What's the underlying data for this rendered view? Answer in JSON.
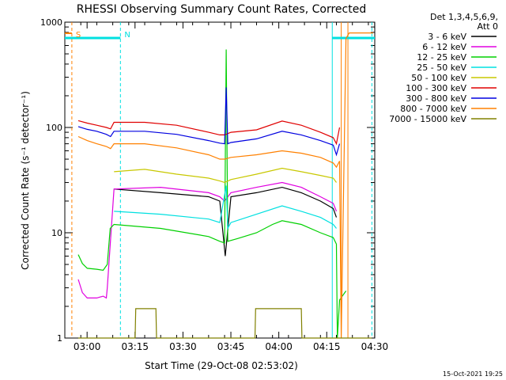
{
  "chart_data": {
    "type": "line",
    "title": "RHESSI Observing Summary Count Rates, Corrected",
    "xlabel": "Start Time (29-Oct-08 02:53:02)",
    "ylabel": "Corrected Count Rate (s⁻¹ detector⁻¹)",
    "y_scale": "log",
    "ylim": [
      1,
      1000
    ],
    "xlim_minutes": [
      0,
      97
    ],
    "y_tick_labels": [
      "1",
      "10",
      "100",
      "1000"
    ],
    "x_tick_labels": [
      "03:00",
      "03:15",
      "03:30",
      "03:45",
      "04:00",
      "04:15",
      "04:30"
    ],
    "x_tick_minutes": [
      6.97,
      21.97,
      36.97,
      51.97,
      66.97,
      81.97,
      96.97
    ],
    "legend_header": [
      "Det 1,3,4,5,6,9,",
      "Att 0"
    ],
    "series": [
      {
        "name": "3 - 6 keV",
        "color": "#000000",
        "points": [
          [
            15.4,
            26
          ],
          [
            30,
            24
          ],
          [
            45,
            22
          ],
          [
            48.5,
            20
          ],
          [
            50.2,
            6
          ],
          [
            52,
            22
          ],
          [
            60,
            24
          ],
          [
            68,
            27
          ],
          [
            74,
            24
          ],
          [
            80,
            20
          ],
          [
            84,
            17
          ],
          [
            85,
            14
          ]
        ]
      },
      {
        "name": "6 - 12 keV",
        "color": "#e000e0",
        "points": [
          [
            4.2,
            3.6
          ],
          [
            5.5,
            2.7
          ],
          [
            7,
            2.4
          ],
          [
            10,
            2.4
          ],
          [
            12,
            2.5
          ],
          [
            13,
            2.4
          ],
          [
            13.3,
            3
          ],
          [
            15.4,
            26
          ],
          [
            30,
            27
          ],
          [
            45,
            24
          ],
          [
            48.5,
            22
          ],
          [
            50,
            20
          ],
          [
            52,
            24
          ],
          [
            60,
            27
          ],
          [
            68,
            30
          ],
          [
            74,
            27
          ],
          [
            80,
            22
          ],
          [
            84,
            19
          ],
          [
            85,
            16
          ]
        ]
      },
      {
        "name": "12 - 25 keV",
        "color": "#00d000",
        "points": [
          [
            4.2,
            6.2
          ],
          [
            5.5,
            5.1
          ],
          [
            7,
            4.6
          ],
          [
            10,
            4.5
          ],
          [
            12,
            4.4
          ],
          [
            13.3,
            5
          ],
          [
            14.2,
            11
          ],
          [
            15.4,
            12
          ],
          [
            30,
            11
          ],
          [
            45,
            9.2
          ],
          [
            48.5,
            8.3
          ],
          [
            50,
            8
          ],
          [
            50.5,
            550
          ],
          [
            51,
            8.3
          ],
          [
            54,
            8.8
          ],
          [
            60,
            10
          ],
          [
            65,
            12
          ],
          [
            68,
            13
          ],
          [
            74,
            12
          ],
          [
            80,
            10
          ],
          [
            84,
            9
          ],
          [
            85,
            7.8
          ],
          [
            85.3,
            1
          ],
          [
            86,
            2.3
          ],
          [
            88,
            2.8
          ]
        ]
      },
      {
        "name": "25 - 50 keV",
        "color": "#00e0e0",
        "points": [
          [
            15.4,
            16
          ],
          [
            30,
            15
          ],
          [
            45,
            13.5
          ],
          [
            48.5,
            12.5
          ],
          [
            50.5,
            28
          ],
          [
            51,
            11
          ],
          [
            52,
            12.5
          ],
          [
            60,
            15
          ],
          [
            68,
            18
          ],
          [
            74,
            16
          ],
          [
            80,
            14
          ],
          [
            84,
            12
          ],
          [
            85,
            11
          ]
        ]
      },
      {
        "name": "50 - 100 keV",
        "color": "#c8c800",
        "points": [
          [
            15.4,
            38
          ],
          [
            25,
            40
          ],
          [
            35,
            36
          ],
          [
            45,
            33
          ],
          [
            48.5,
            31
          ],
          [
            50,
            30
          ],
          [
            52,
            32
          ],
          [
            60,
            36
          ],
          [
            68,
            41
          ],
          [
            74,
            38
          ],
          [
            80,
            35
          ],
          [
            84,
            33
          ],
          [
            85,
            30
          ]
        ]
      },
      {
        "name": "100 - 300 keV",
        "color": "#e00000",
        "points": [
          [
            4.2,
            116
          ],
          [
            7,
            110
          ],
          [
            10,
            105
          ],
          [
            13,
            100
          ],
          [
            14.3,
            97
          ],
          [
            15.4,
            112
          ],
          [
            25,
            112
          ],
          [
            35,
            105
          ],
          [
            45,
            90
          ],
          [
            48.5,
            85
          ],
          [
            50,
            85
          ],
          [
            52,
            90
          ],
          [
            60,
            95
          ],
          [
            68,
            115
          ],
          [
            74,
            105
          ],
          [
            80,
            90
          ],
          [
            84,
            80
          ],
          [
            85,
            70
          ],
          [
            86,
            100
          ]
        ]
      },
      {
        "name": "300 - 800 keV",
        "color": "#0000e0",
        "points": [
          [
            4.2,
            102
          ],
          [
            7,
            96
          ],
          [
            10,
            92
          ],
          [
            13,
            86
          ],
          [
            14.3,
            82
          ],
          [
            15.4,
            92
          ],
          [
            25,
            92
          ],
          [
            35,
            86
          ],
          [
            45,
            75
          ],
          [
            48.5,
            71
          ],
          [
            50,
            70
          ],
          [
            50.5,
            240
          ],
          [
            51,
            70
          ],
          [
            52,
            72
          ],
          [
            60,
            78
          ],
          [
            68,
            92
          ],
          [
            74,
            85
          ],
          [
            80,
            75
          ],
          [
            84,
            68
          ],
          [
            85,
            55
          ],
          [
            86,
            70
          ]
        ]
      },
      {
        "name": "800 - 7000 keV",
        "color": "#ff8000",
        "points": [
          [
            4.2,
            82
          ],
          [
            7,
            75
          ],
          [
            10,
            70
          ],
          [
            13,
            66
          ],
          [
            14.3,
            63
          ],
          [
            15.4,
            70
          ],
          [
            25,
            70
          ],
          [
            35,
            64
          ],
          [
            45,
            55
          ],
          [
            48.5,
            50
          ],
          [
            50,
            50
          ],
          [
            52,
            52
          ],
          [
            60,
            55
          ],
          [
            68,
            60
          ],
          [
            74,
            57
          ],
          [
            80,
            52
          ],
          [
            84,
            46
          ],
          [
            85,
            42
          ],
          [
            86,
            48
          ],
          [
            86.5,
            1
          ],
          [
            88,
            700
          ],
          [
            89,
            790
          ],
          [
            96.5,
            790
          ]
        ]
      },
      {
        "name": "7000 - 15000 keV",
        "color": "#808000",
        "points": [
          [
            4.2,
            1
          ],
          [
            22,
            1
          ],
          [
            22.2,
            1.9
          ],
          [
            28.5,
            1.9
          ],
          [
            28.7,
            1
          ],
          [
            59.5,
            1
          ],
          [
            59.7,
            1.9
          ],
          [
            74,
            1.9
          ],
          [
            74.2,
            1
          ],
          [
            96,
            1
          ]
        ]
      }
    ],
    "annotations": [
      {
        "label": "S",
        "color": "#ff8000",
        "x_minutes": 2.2
      },
      {
        "label": "N",
        "color": "#00e0e0",
        "x_minutes": 17.4
      }
    ],
    "markers": {
      "cyan_dashed_minutes": [
        17.4,
        96.1
      ],
      "cyan_solid_minutes": [
        83.7
      ],
      "orange_dashed_minutes": [
        2.2
      ],
      "orange_solid_minutes": [
        86.5,
        88.6
      ]
    },
    "grid": false
  },
  "footer": {
    "timestamp": "15-Oct-2021 19:25"
  }
}
